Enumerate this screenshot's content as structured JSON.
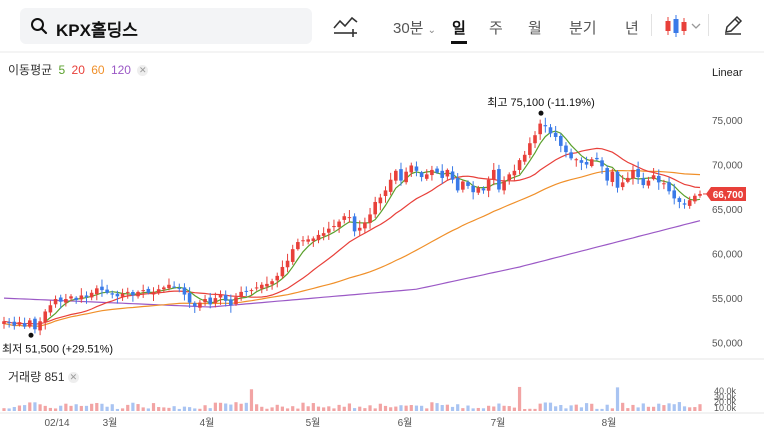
{
  "header": {
    "stock_name": "KPX홀딩스",
    "timeframes": [
      {
        "label": "30분",
        "dropdown": true,
        "selected": false
      },
      {
        "label": "일",
        "selected": true
      },
      {
        "label": "주",
        "selected": false
      },
      {
        "label": "월",
        "selected": false
      },
      {
        "label": "분기",
        "selected": false
      },
      {
        "label": "년",
        "selected": false
      }
    ],
    "icons": [
      "search-icon",
      "drawing-tool-icon",
      "candle-type-icon",
      "pencil-icon"
    ]
  },
  "ma_legend": {
    "title": "이동평균",
    "items": [
      {
        "label": "5",
        "color": "#5aa02c"
      },
      {
        "label": "20",
        "color": "#e8403a"
      },
      {
        "label": "60",
        "color": "#f0902a"
      },
      {
        "label": "120",
        "color": "#9b59c6"
      }
    ]
  },
  "scale_label": "Linear",
  "volume_legend": {
    "label": "거래량",
    "value": "851"
  },
  "chart_data": {
    "type": "candlestick",
    "price_axis": {
      "ticks": [
        50000,
        55000,
        60000,
        65000,
        70000,
        75000
      ],
      "tick_labels": [
        "50,000",
        "55,000",
        "60,000",
        "65,000",
        "70,000",
        "75,000"
      ],
      "ylim": [
        48500,
        79500
      ]
    },
    "volume_axis": {
      "tick_labels": [
        "40.0k",
        "30.0k",
        "20.0k",
        "10.0k"
      ]
    },
    "x_axis_labels": [
      "02/14",
      "3월",
      "4월",
      "5월",
      "6월",
      "7월",
      "8월"
    ],
    "current_price": {
      "value": 66700,
      "label": "66,700",
      "color": "#e8403a"
    },
    "annotations": [
      {
        "type": "high",
        "label": "최고",
        "value": "75,100",
        "change": "(-11.19%)",
        "price": 75100
      },
      {
        "type": "low",
        "label": "최저",
        "value": "51,500",
        "change": "(+29.51%)",
        "price": 51500
      }
    ],
    "colors": {
      "up": "#e8403a",
      "down": "#3a7ae8",
      "volume_up": "#f2a4a4",
      "volume_down": "#a9c4f2"
    },
    "close_series": [
      52400,
      52200,
      51900,
      52300,
      51800,
      52500,
      51500,
      52400,
      53500,
      54200,
      54900,
      54600,
      54900,
      55200,
      54800,
      55300,
      55100,
      55600,
      56100,
      55900,
      55600,
      55400,
      55200,
      55500,
      55700,
      55300,
      55700,
      55900,
      55600,
      55700,
      56000,
      56200,
      56500,
      56300,
      56100,
      55400,
      54500,
      54100,
      54500,
      54900,
      54300,
      55000,
      55400,
      54700,
      54200,
      55100,
      55700,
      55700,
      55900,
      56200,
      56500,
      56600,
      56900,
      57500,
      58500,
      59200,
      60500,
      61300,
      61500,
      61600,
      61700,
      62100,
      62300,
      62800,
      63100,
      63600,
      64200,
      64100,
      62500,
      62900,
      63500,
      64400,
      65800,
      66300,
      67100,
      68300,
      69300,
      68200,
      69200,
      69900,
      69300,
      68600,
      68900,
      69400,
      69100,
      68500,
      69400,
      68300,
      67100,
      68100,
      67600,
      66900,
      67400,
      67100,
      68300,
      69400,
      67200,
      68100,
      68900,
      69300,
      70500,
      71100,
      72400,
      73300,
      74600,
      74300,
      73500,
      73100,
      72100,
      71400,
      70700,
      70600,
      70200,
      70000,
      70600,
      70600,
      69800,
      68200,
      69200,
      67400,
      68000,
      68500,
      69400,
      68600,
      67700,
      68200,
      68800,
      68000,
      67900,
      67000,
      66200,
      65800,
      65500,
      66000,
      66500,
      66700
    ],
    "ma5_visible_from_index": 8
  }
}
